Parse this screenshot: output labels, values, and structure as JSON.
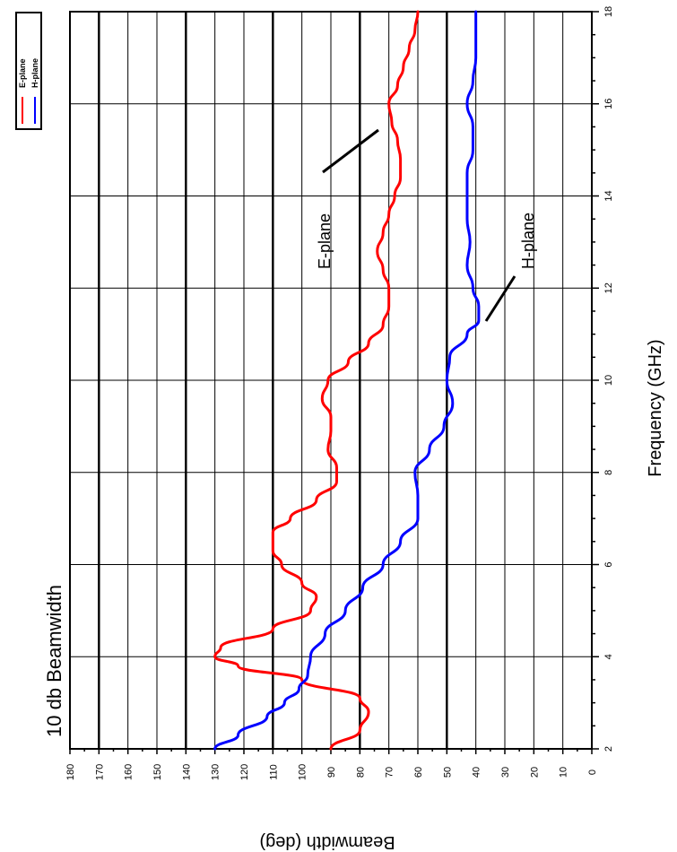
{
  "chart_data": {
    "type": "line",
    "title": "10 db Beamwidth",
    "xlabel": "Frequency (GHz)",
    "ylabel": "Beamwidth (deg)",
    "xlim": [
      2,
      18
    ],
    "ylim": [
      0,
      180
    ],
    "x_ticks": [
      "2",
      "4",
      "6",
      "8",
      "10",
      "12",
      "14",
      "16",
      "18"
    ],
    "y_ticks": [
      "0",
      "10",
      "20",
      "30",
      "40",
      "50",
      "60",
      "70",
      "80",
      "90",
      "100",
      "110",
      "120",
      "130",
      "140",
      "150",
      "160",
      "170",
      "180"
    ],
    "grid": true,
    "orientation": "rotated 90 degrees clockwise",
    "legend_position": "top-right",
    "series": [
      {
        "name": "E-plane",
        "color": "#ff0000",
        "x": [
          2,
          2.4,
          2.8,
          3.1,
          3.5,
          3.8,
          4.0,
          4.2,
          4.6,
          5.0,
          5.3,
          5.6,
          6.0,
          6.3,
          6.7,
          7.0,
          7.4,
          7.8,
          8.1,
          8.5,
          8.9,
          9.2,
          9.6,
          10.0,
          10.4,
          10.8,
          11.2,
          11.6,
          12.0,
          12.4,
          12.8,
          13.2,
          13.6,
          14.0,
          14.4,
          14.8,
          15.2,
          15.6,
          16.0,
          16.4,
          16.8,
          17.2,
          17.6,
          18.0
        ],
        "y": [
          90,
          80,
          77,
          80,
          100,
          122,
          130,
          128,
          110,
          97,
          95,
          100,
          107,
          110,
          110,
          104,
          95,
          88,
          88,
          91,
          90,
          90,
          93,
          91,
          84,
          77,
          72,
          70,
          70,
          72,
          74,
          72,
          70,
          68,
          66,
          66,
          67,
          69,
          70,
          67,
          65,
          63,
          61,
          60
        ]
      },
      {
        "name": "H-plane",
        "color": "#0000ff",
        "x": [
          2,
          2.3,
          2.7,
          3.0,
          3.3,
          3.6,
          4.0,
          4.5,
          5.0,
          5.5,
          6.0,
          6.5,
          7.0,
          7.5,
          8.0,
          8.5,
          9.0,
          9.5,
          10.0,
          10.5,
          11.0,
          11.3,
          11.6,
          12.0,
          12.5,
          13.0,
          13.5,
          14.0,
          14.5,
          15.0,
          15.5,
          16.0,
          16.5,
          17.0,
          17.5,
          18.0
        ],
        "y": [
          130,
          122,
          112,
          106,
          101,
          98,
          97,
          92,
          85,
          79,
          72,
          66,
          60,
          60,
          61,
          56,
          51,
          48,
          50,
          49,
          43,
          39,
          39,
          41,
          43,
          42,
          43,
          43,
          43,
          41,
          41,
          43,
          41,
          40,
          40,
          40
        ]
      }
    ],
    "annotations": [
      {
        "text": "E-plane",
        "x": 15.8,
        "y": 71
      },
      {
        "text": "H-plane",
        "x": 11.1,
        "y": 40
      }
    ],
    "legend": [
      "E-plane",
      "H-plane"
    ]
  }
}
